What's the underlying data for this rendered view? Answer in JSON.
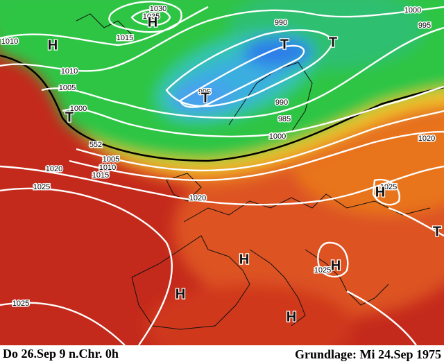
{
  "footer": {
    "left": "Do 26.Sep 9 n.Chr.  0h",
    "right": "Grundlage: Mi 24.Sep 1975"
  },
  "isobar_labels": [
    1030,
    1035,
    1015,
    1010,
    1010,
    1005,
    1000,
    995,
    990,
    990,
    985,
    1000,
    1000,
    995,
    1020,
    1005,
    1010,
    1015,
    1020,
    1025,
    1020,
    1025,
    1025,
    1025,
    552
  ],
  "pressure_centers": [
    "H",
    "H",
    "T",
    "T",
    "T",
    "T",
    "H",
    "H",
    "H",
    "H",
    "H",
    "T"
  ]
}
